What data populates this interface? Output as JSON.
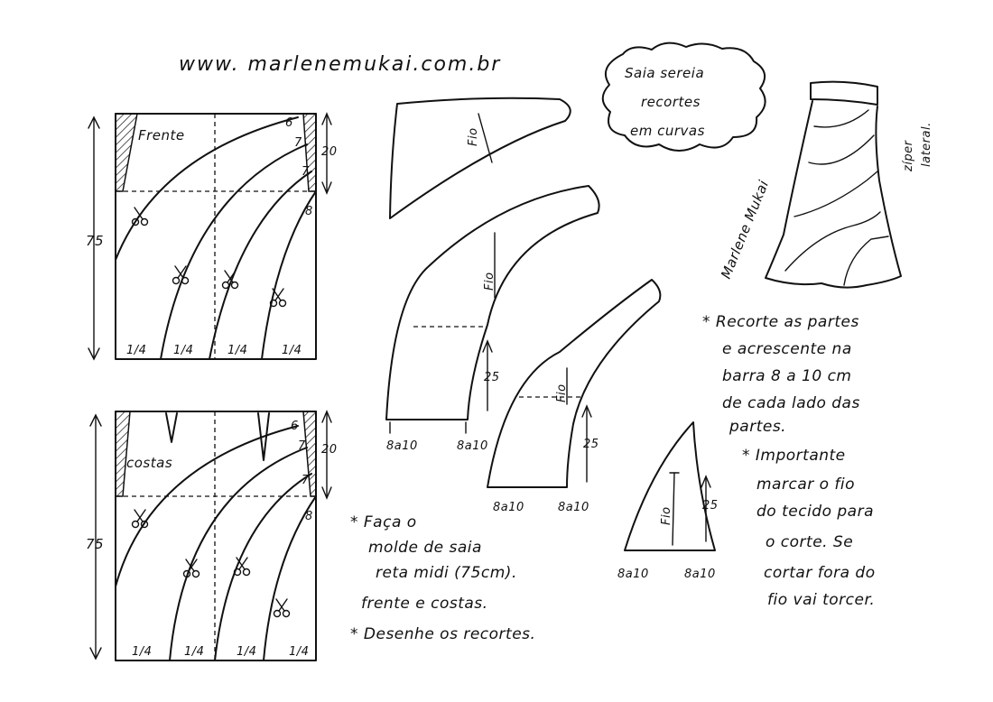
{
  "header": {
    "url": "www. marlenemukai.com.br"
  },
  "title_cloud": {
    "lines": [
      "Saia sereia",
      "recortes",
      "em curvas"
    ]
  },
  "front_panel": {
    "label": "Frente",
    "height": "75",
    "waist_depth": "20",
    "offsets": [
      "6",
      "7",
      "7",
      "8"
    ],
    "quarters": [
      "1/4",
      "1/4",
      "1/4",
      "1/4"
    ]
  },
  "back_panel": {
    "label": "costas",
    "height": "75",
    "waist_depth": "20",
    "offsets": [
      "6",
      "7",
      "7",
      "8"
    ],
    "quarters": [
      "1/4",
      "1/4",
      "1/4",
      "1/4"
    ]
  },
  "pieces": {
    "grain_label": "Fio",
    "flare_label": "8a10",
    "flare_height": "25"
  },
  "side_note": {
    "lines": [
      "zíper",
      "lateral."
    ]
  },
  "signature": "Marlene Mukai",
  "instructions_right": {
    "lines": [
      "* Recorte as partes",
      "e acrescente na",
      "barra 8 a 10 cm",
      "de cada lado das",
      "partes.",
      "* Importante",
      "marcar o fio",
      "do tecido para",
      "o corte. Se",
      "cortar fora do",
      "fio vai torcer."
    ]
  },
  "instructions_bottom": {
    "lines": [
      "* Faça o",
      "molde de saia",
      "reta midi (75cm).",
      "frente e costas.",
      "* Desenhe os recortes."
    ]
  }
}
